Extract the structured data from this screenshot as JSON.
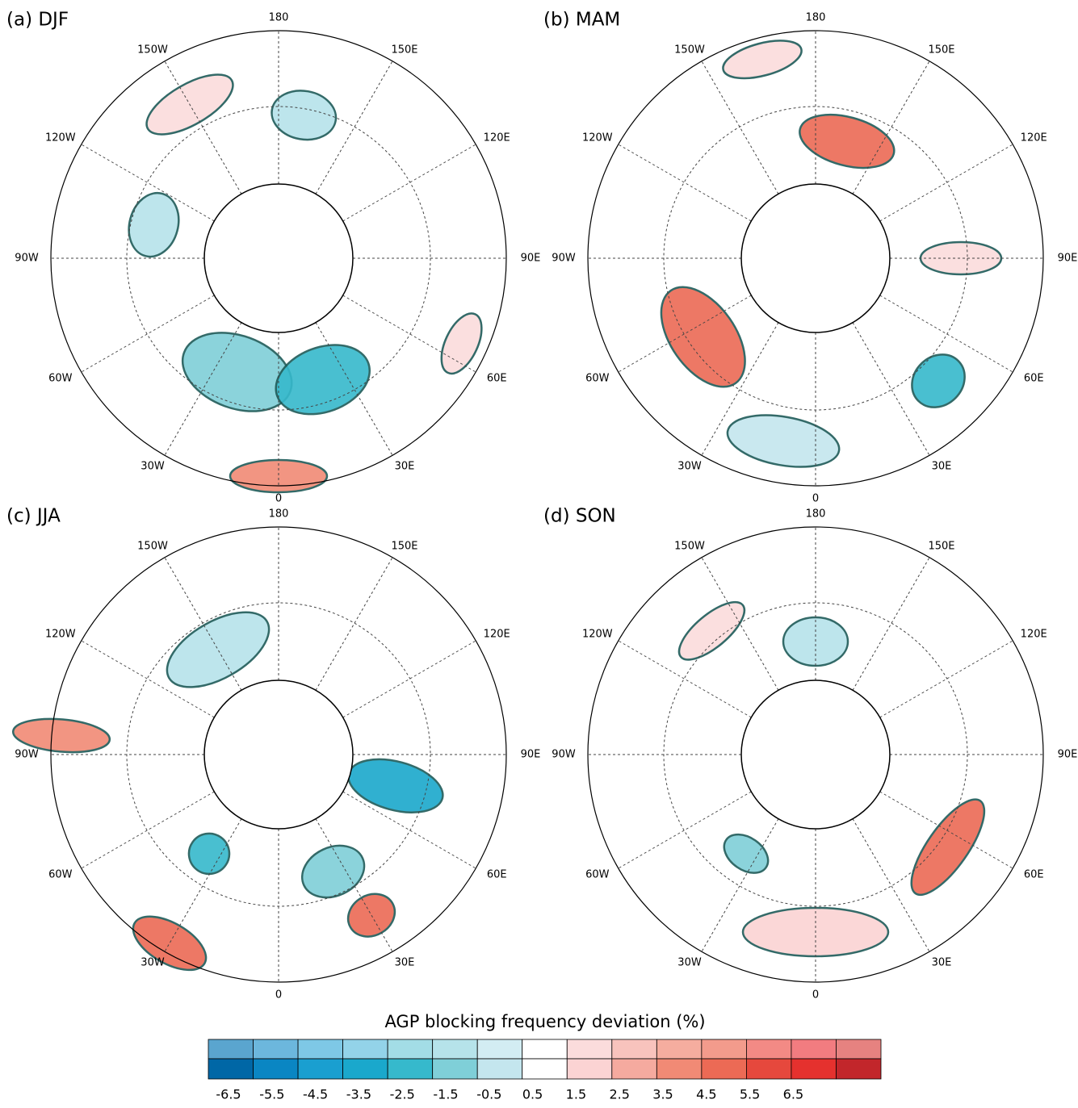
{
  "panels": [
    {
      "label": "(a) DJF"
    },
    {
      "label": "(b) MAM"
    },
    {
      "label": "(c) JJA"
    },
    {
      "label": "(d) SON"
    }
  ],
  "longitude_labels": [
    "180",
    "150E",
    "120E",
    "90E",
    "60E",
    "30E",
    "0",
    "30W",
    "60W",
    "90W",
    "120W",
    "150W"
  ],
  "colorbar": {
    "title": "AGP blocking frequency deviation (%)",
    "labels": [
      -6.5,
      -5.5,
      -4.5,
      -3.5,
      -2.5,
      -1.5,
      -0.5,
      0.5,
      1.5,
      2.5,
      3.5,
      4.5,
      5.5,
      6.5
    ],
    "colors_top": [
      "#5aa5cf",
      "#6cb7dd",
      "#7ec8e6",
      "#93d3e9",
      "#a3dde6",
      "#b6e3ea",
      "#d3edf3",
      "#ffffff",
      "#fbdcdc",
      "#f8c3bd",
      "#f5ad9f",
      "#f39b8c",
      "#f38a85",
      "#f27c80",
      "#e68280"
    ],
    "colors_bottom": [
      "#0067a6",
      "#0a86c3",
      "#1a9fd0",
      "#1aa8cc",
      "#36b9cc",
      "#7fcfd8",
      "#c4e6ee",
      "#ffffff",
      "#fbd3d3",
      "#f5aa9f",
      "#f18a75",
      "#ec6a55",
      "#e6483d",
      "#e5312e",
      "#c2262b"
    ]
  }
}
